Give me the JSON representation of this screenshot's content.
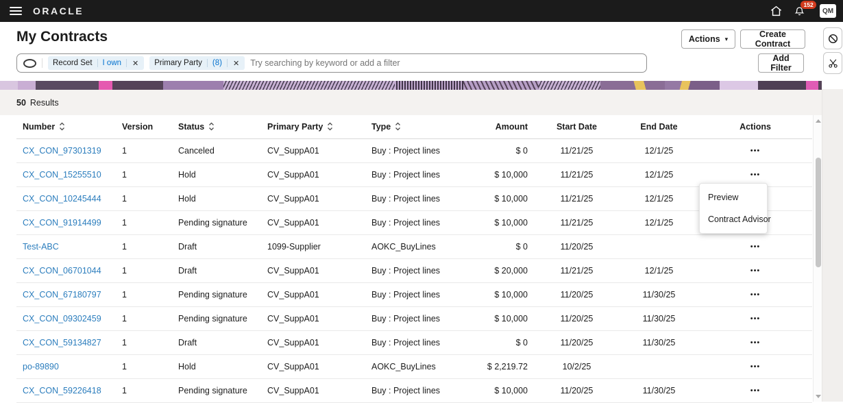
{
  "topbar": {
    "brand": "ORACLE",
    "notification_count": "152",
    "avatar_initials": "QM",
    "icons": [
      "menu-icon",
      "home-icon",
      "bell-icon"
    ]
  },
  "header": {
    "title": "My Contracts",
    "actions_label": "Actions",
    "create_label": "Create Contract"
  },
  "filter_bar": {
    "chips": [
      {
        "label": "Record Set",
        "value": "I own"
      },
      {
        "label": "Primary Party",
        "value": "(8)"
      }
    ],
    "search_placeholder": "Try searching by keyword or add a filter",
    "add_filter_label": "Add Filter",
    "icons": [
      "filter-toggle-icon",
      "remove-filter-icon"
    ]
  },
  "results": {
    "count": "50",
    "label": "Results"
  },
  "glyphs": {
    "close": "✕",
    "caret": "▾",
    "ellipsis": "•••"
  },
  "colors": {
    "accent_link": "#2b7dbd",
    "chip_value": "#0572ce",
    "badge": "#d23a1d",
    "chip_bg": "#e7f1f8"
  },
  "table": {
    "columns": [
      {
        "key": "number",
        "label": "Number",
        "sortable": true
      },
      {
        "key": "version",
        "label": "Version",
        "sortable": false
      },
      {
        "key": "status",
        "label": "Status",
        "sortable": true
      },
      {
        "key": "primary_party",
        "label": "Primary Party",
        "sortable": true
      },
      {
        "key": "type",
        "label": "Type",
        "sortable": true
      },
      {
        "key": "amount",
        "label": "Amount",
        "sortable": false
      },
      {
        "key": "start_date",
        "label": "Start Date",
        "sortable": false
      },
      {
        "key": "end_date",
        "label": "End Date",
        "sortable": false
      },
      {
        "key": "actions",
        "label": "Actions",
        "sortable": false
      }
    ],
    "rows": [
      {
        "number": "CX_CON_97301319",
        "version": "1",
        "status": "Canceled",
        "primary_party": "CV_SuppA01",
        "type": "Buy : Project lines",
        "amount": "$ 0",
        "start_date": "11/21/25",
        "end_date": "12/1/25"
      },
      {
        "number": "CX_CON_15255510",
        "version": "1",
        "status": "Hold",
        "primary_party": "CV_SuppA01",
        "type": "Buy : Project lines",
        "amount": "$ 10,000",
        "start_date": "11/21/25",
        "end_date": "12/1/25"
      },
      {
        "number": "CX_CON_10245444",
        "version": "1",
        "status": "Hold",
        "primary_party": "CV_SuppA01",
        "type": "Buy : Project lines",
        "amount": "$ 10,000",
        "start_date": "11/21/25",
        "end_date": "12/1/25"
      },
      {
        "number": "CX_CON_91914499",
        "version": "1",
        "status": "Pending signature",
        "primary_party": "CV_SuppA01",
        "type": "Buy : Project lines",
        "amount": "$ 10,000",
        "start_date": "11/21/25",
        "end_date": "12/1/25"
      },
      {
        "number": "Test-ABC",
        "version": "1",
        "status": "Draft",
        "primary_party": "1099-Supplier",
        "type": "AOKC_BuyLines",
        "amount": "$ 0",
        "start_date": "11/20/25",
        "end_date": ""
      },
      {
        "number": "CX_CON_06701044",
        "version": "1",
        "status": "Draft",
        "primary_party": "CV_SuppA01",
        "type": "Buy : Project lines",
        "amount": "$ 20,000",
        "start_date": "11/21/25",
        "end_date": "12/1/25"
      },
      {
        "number": "CX_CON_67180797",
        "version": "1",
        "status": "Pending signature",
        "primary_party": "CV_SuppA01",
        "type": "Buy : Project lines",
        "amount": "$ 10,000",
        "start_date": "11/20/25",
        "end_date": "11/30/25"
      },
      {
        "number": "CX_CON_09302459",
        "version": "1",
        "status": "Pending signature",
        "primary_party": "CV_SuppA01",
        "type": "Buy : Project lines",
        "amount": "$ 10,000",
        "start_date": "11/20/25",
        "end_date": "11/30/25"
      },
      {
        "number": "CX_CON_59134827",
        "version": "1",
        "status": "Draft",
        "primary_party": "CV_SuppA01",
        "type": "Buy : Project lines",
        "amount": "$ 0",
        "start_date": "11/20/25",
        "end_date": "11/30/25"
      },
      {
        "number": "po-89890",
        "version": "1",
        "status": "Hold",
        "primary_party": "CV_SuppA01",
        "type": "AOKC_BuyLines",
        "amount": "$ 2,219.72",
        "start_date": "10/2/25",
        "end_date": ""
      },
      {
        "number": "CX_CON_59226418",
        "version": "1",
        "status": "Pending signature",
        "primary_party": "CV_SuppA01",
        "type": "Buy : Project lines",
        "amount": "$ 10,000",
        "start_date": "11/20/25",
        "end_date": "11/30/25"
      }
    ]
  },
  "context_menu": {
    "items": [
      "Preview",
      "Contract Advisor"
    ]
  },
  "side_rail": {
    "icons": [
      "block-icon",
      "scissors-icon"
    ]
  }
}
